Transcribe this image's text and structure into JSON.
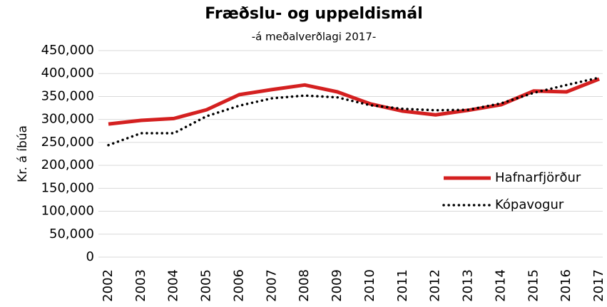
{
  "chart_data": {
    "type": "line",
    "title": "Fræðslu- og uppeldismál",
    "subtitle": "-á meðalverðlagi 2017-",
    "y_label": "Kr. á íbúa",
    "categories": [
      "2002",
      "2003",
      "2004",
      "2005",
      "2006",
      "2007",
      "2008",
      "2009",
      "2010",
      "2011",
      "2012",
      "2013",
      "2014",
      "2015",
      "2016",
      "2017"
    ],
    "series": [
      {
        "name": "Hafnarfjörður",
        "color": "#d42020",
        "style": "solid",
        "values": [
          290000,
          298000,
          302000,
          321000,
          354000,
          365000,
          375000,
          360000,
          334000,
          318000,
          310000,
          320000,
          332000,
          362000,
          360000,
          388000
        ]
      },
      {
        "name": "Kópavogur",
        "color": "#000000",
        "style": "dotted",
        "values": [
          244000,
          270000,
          270000,
          307000,
          330000,
          346000,
          352000,
          348000,
          331000,
          323000,
          320000,
          321000,
          335000,
          358000,
          375000,
          391000
        ]
      }
    ],
    "ylim": [
      0,
      450000
    ],
    "yticks": [
      0,
      {
        "value": 50000,
        "label": "50,000"
      },
      {
        "value": 100000,
        "label": "100,000"
      },
      {
        "value": 150000,
        "label": "150,000"
      },
      {
        "value": 200000,
        "label": "200,000"
      },
      {
        "value": 250000,
        "label": "250,000"
      },
      {
        "value": 300000,
        "label": "300,000"
      },
      {
        "value": 350000,
        "label": "350,000"
      },
      {
        "value": 400000,
        "label": "400,000"
      },
      {
        "value": 450000,
        "label": "450,000"
      }
    ],
    "grid": true,
    "legend_position": "right"
  }
}
